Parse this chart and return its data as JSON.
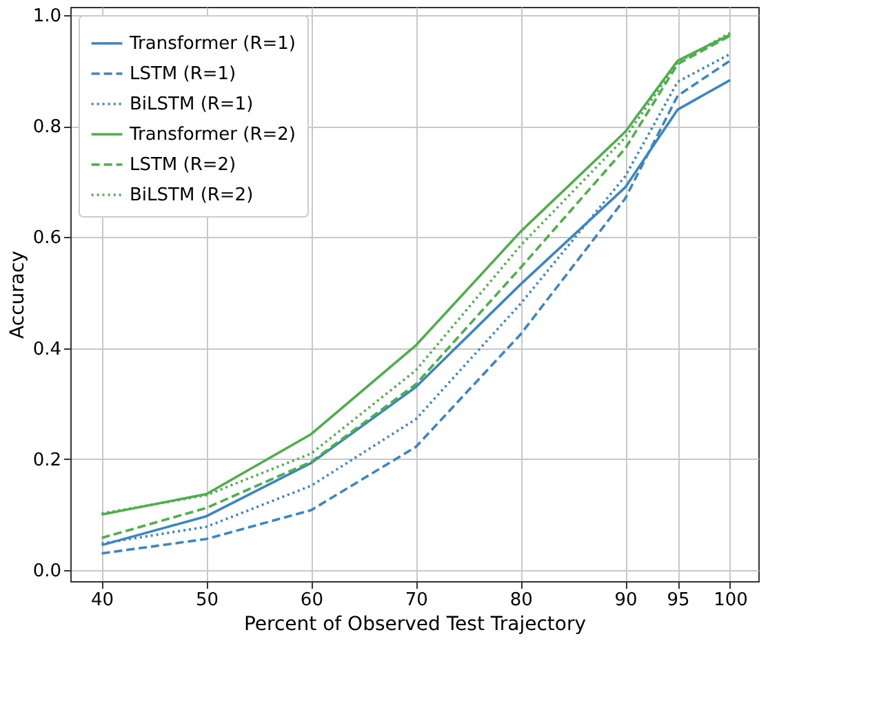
{
  "chart_data": {
    "type": "line",
    "xlabel": "Percent of Observed Test Trajectory",
    "ylabel": "Accuracy",
    "x": [
      40,
      50,
      60,
      70,
      80,
      90,
      95,
      100
    ],
    "xlim": [
      37,
      102.7
    ],
    "xticks": [
      40,
      50,
      60,
      70,
      80,
      90,
      95,
      100
    ],
    "ylim": [
      -0.02,
      1.015
    ],
    "yticks": [
      {
        "value": 0,
        "label": "0.0"
      },
      0.2,
      0.4,
      0.6,
      0.8,
      {
        "value": 1,
        "label": "1.0"
      }
    ],
    "grid": true,
    "legend": "top left",
    "marker": "none",
    "series": [
      {
        "name": "Transformer (R=1)",
        "color": "#3a86c4",
        "line_style": "solid",
        "values": [
          0.045,
          0.097,
          0.193,
          0.33,
          0.515,
          0.69,
          0.83,
          0.883
        ]
      },
      {
        "name": "LSTM (R=1)",
        "color": "#3a86c4",
        "line_style": "dashed",
        "values": [
          0.03,
          0.056,
          0.108,
          0.222,
          0.425,
          0.67,
          0.855,
          0.918
        ]
      },
      {
        "name": "BiLSTM (R=1)",
        "color": "#3a86c4",
        "line_style": "dotted",
        "values": [
          0.048,
          0.078,
          0.152,
          0.272,
          0.48,
          0.71,
          0.88,
          0.93
        ]
      },
      {
        "name": "Transformer (R=2)",
        "color": "#4daf4a",
        "line_style": "solid",
        "values": [
          0.1,
          0.137,
          0.245,
          0.405,
          0.61,
          0.79,
          0.918,
          0.965
        ]
      },
      {
        "name": "LSTM (R=2)",
        "color": "#4daf4a",
        "line_style": "dashed",
        "values": [
          0.058,
          0.112,
          0.195,
          0.335,
          0.545,
          0.76,
          0.912,
          0.963
        ]
      },
      {
        "name": "BiLSTM (R=2)",
        "color": "#4daf4a",
        "line_style": "dotted",
        "values": [
          0.102,
          0.135,
          0.21,
          0.36,
          0.585,
          0.78,
          0.915,
          0.968
        ]
      }
    ]
  }
}
